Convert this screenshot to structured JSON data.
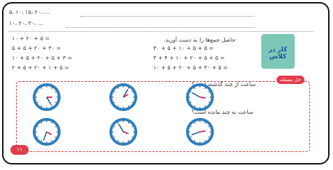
{
  "sequences": [
    "۵، ۱۰، ۱۵، ۲۰، ...",
    "۱۰، ۲۰، ۳۰، ..."
  ],
  "instruction": "حاصل جمع‌ها را به دست آورید.",
  "equations": {
    "left": [
      "۱۰ + ۲۰ + ۵ =",
      "۵ + ۵ + ۲۰ + ۳۰ =",
      "۱۰ + ۵ + ۲۰ + ۵ + ۳ =",
      "۲ + ۵ + ۲۰ + ۱ + ۵ ="
    ],
    "right": [
      "۳۰ + ۵ + ۱۰ + ۵ + ۵ =",
      "۳ + ۴ + ۱۰ + ۲۰ + ۵ + ۵ =",
      "۱۰ + ۵ + ۲۰ + ۵ + ۳۰ + ۵ ="
    ]
  },
  "badge": "کار در کلاس",
  "section_label": "حل مسئله",
  "questions": [
    "ساعت از چند گذشته است؟",
    "ساعت به چند مانده است؟"
  ],
  "page_number": "۱۱"
}
